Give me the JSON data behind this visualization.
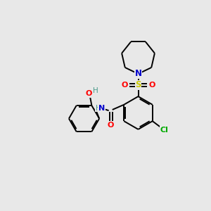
{
  "bg_color": "#e8e8e8",
  "bond_color": "#000000",
  "atom_colors": {
    "N": "#0000cc",
    "O": "#ff0000",
    "S": "#cccc00",
    "Cl": "#00aa00",
    "H_color": "#4a9a8a",
    "C": "#000000"
  },
  "figsize": [
    3.0,
    3.0
  ],
  "dpi": 100
}
